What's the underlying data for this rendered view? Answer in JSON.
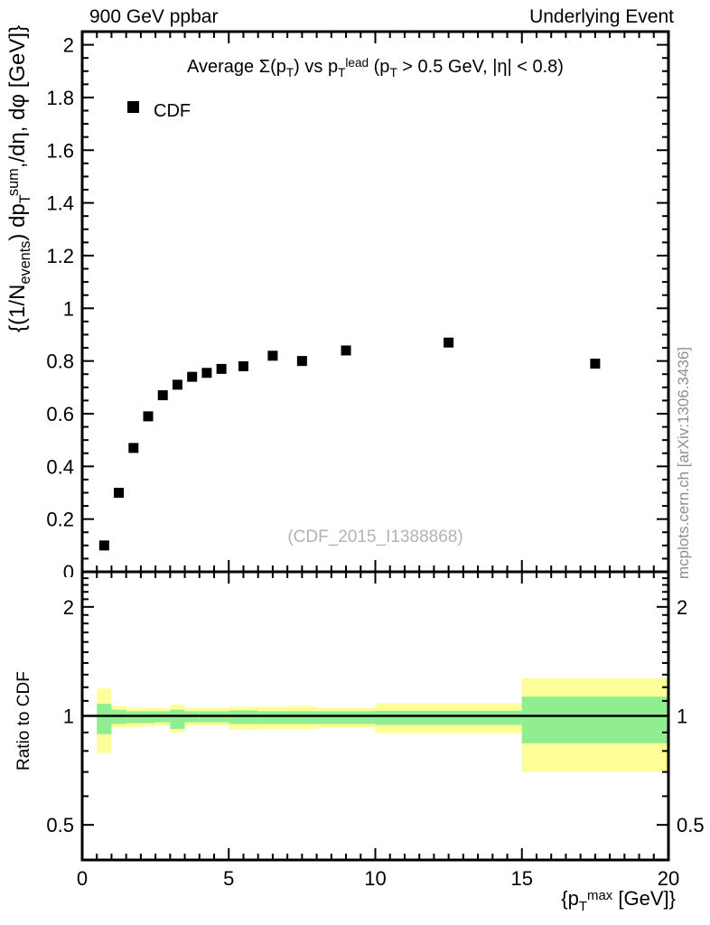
{
  "header": {
    "left": "900 GeV ppbar",
    "right": "Underlying Event"
  },
  "attribution": "mcplots.cern.ch [arXiv:1306.3436]",
  "watermark": "(CDF_2015_I1388868)",
  "legend": {
    "label": "CDF",
    "marker": "black-square"
  },
  "title_segments": [
    {
      "k": "n",
      "v": "Average Σ(p"
    },
    {
      "k": "b",
      "v": "T"
    },
    {
      "k": "n",
      "v": ") vs p"
    },
    {
      "k": "b",
      "v": "T"
    },
    {
      "k": "p",
      "v": "lead"
    },
    {
      "k": "n",
      "v": " (p"
    },
    {
      "k": "b",
      "v": "T"
    },
    {
      "k": "n",
      "v": " > 0.5 GeV, |η| < 0.8)"
    }
  ],
  "ylabel_segments": [
    {
      "k": "n",
      "v": "{(1/N"
    },
    {
      "k": "b",
      "v": "events"
    },
    {
      "k": "n",
      "v": ") dp"
    },
    {
      "k": "b",
      "v": "T"
    },
    {
      "k": "p",
      "v": "sum"
    },
    {
      "k": "n",
      "v": ",/dη, dφ [GeV]}"
    }
  ],
  "xlabel_segments": [
    {
      "k": "n",
      "v": "{p"
    },
    {
      "k": "b",
      "v": "T"
    },
    {
      "k": "p",
      "v": "max"
    },
    {
      "k": "n",
      "v": " [GeV]}"
    }
  ],
  "ratio_ylabel": "Ratio to CDF",
  "chart_data": {
    "type": "scatter",
    "title": "Average Sum(pT) vs pT_lead (pT > 0.5 GeV, |eta| < 0.8)",
    "series": [
      {
        "name": "CDF",
        "marker": "filled-square",
        "color": "#000000",
        "x": [
          0.75,
          1.25,
          1.75,
          2.25,
          2.75,
          3.25,
          3.75,
          4.25,
          4.75,
          5.5,
          6.5,
          7.5,
          9,
          12.5,
          17.5
        ],
        "y": [
          0.1,
          0.3,
          0.47,
          0.59,
          0.67,
          0.71,
          0.74,
          0.755,
          0.77,
          0.78,
          0.82,
          0.8,
          0.84,
          0.87,
          0.79
        ]
      }
    ],
    "xlim": [
      0,
      20
    ],
    "xticks": [
      0,
      5,
      10,
      15,
      20
    ],
    "xtick_labels": [
      "0",
      "5",
      "10",
      "15",
      "20"
    ],
    "xtick_minor_step": 0.5,
    "main_ylim": [
      0,
      2.05
    ],
    "main_yticks": [
      0,
      0.2,
      0.4,
      0.6,
      0.8,
      1,
      1.2,
      1.4,
      1.6,
      1.8,
      2
    ],
    "main_ytick_labels": [
      "0",
      "0.2",
      "0.4",
      "0.6",
      "0.8",
      "1",
      "1.2",
      "1.4",
      "1.6",
      "1.8",
      "2"
    ],
    "main_ytick_minor_step": 0.05,
    "grid": false,
    "ratio_panel": {
      "ylabel": "Ratio to CDF",
      "yscale": "log",
      "ylim": [
        0.4,
        2.5
      ],
      "yticks": [
        0.5,
        1,
        2
      ],
      "ytick_labels": [
        "0.5",
        "1",
        "2"
      ],
      "ytick_minors": [
        0.6,
        0.7,
        0.8,
        0.9,
        1.1,
        1.2,
        1.3,
        1.4,
        1.5,
        1.6,
        1.7,
        1.8,
        1.9,
        2.1,
        2.2,
        2.3,
        2.4
      ],
      "reference_line_y": 1,
      "band_edges": [
        0.5,
        1,
        1.5,
        2,
        2.5,
        3,
        3.5,
        4,
        4.5,
        5,
        6,
        7,
        8,
        10,
        15,
        20
      ],
      "band_inner_lo": [
        0.89,
        0.95,
        0.955,
        0.955,
        0.96,
        0.92,
        0.96,
        0.96,
        0.96,
        0.95,
        0.95,
        0.95,
        0.95,
        0.944,
        0.84
      ],
      "band_inner_hi": [
        1.08,
        1.04,
        1.03,
        1.03,
        1.03,
        1.04,
        1.03,
        1.03,
        1.03,
        1.035,
        1.03,
        1.03,
        1.03,
        1.033,
        1.13
      ],
      "band_outer_lo": [
        0.79,
        0.93,
        0.93,
        0.935,
        0.94,
        0.9,
        0.94,
        0.94,
        0.94,
        0.915,
        0.92,
        0.92,
        0.93,
        0.895,
        0.7
      ],
      "band_outer_hi": [
        1.19,
        1.065,
        1.05,
        1.05,
        1.05,
        1.075,
        1.05,
        1.05,
        1.05,
        1.06,
        1.06,
        1.065,
        1.05,
        1.083,
        1.27
      ]
    },
    "colors": {
      "inner_band": "#90ee90",
      "outer_band": "#ffff99",
      "frame": "#000000",
      "marker": "#000000",
      "gray_text": "#8f8f8f"
    }
  }
}
